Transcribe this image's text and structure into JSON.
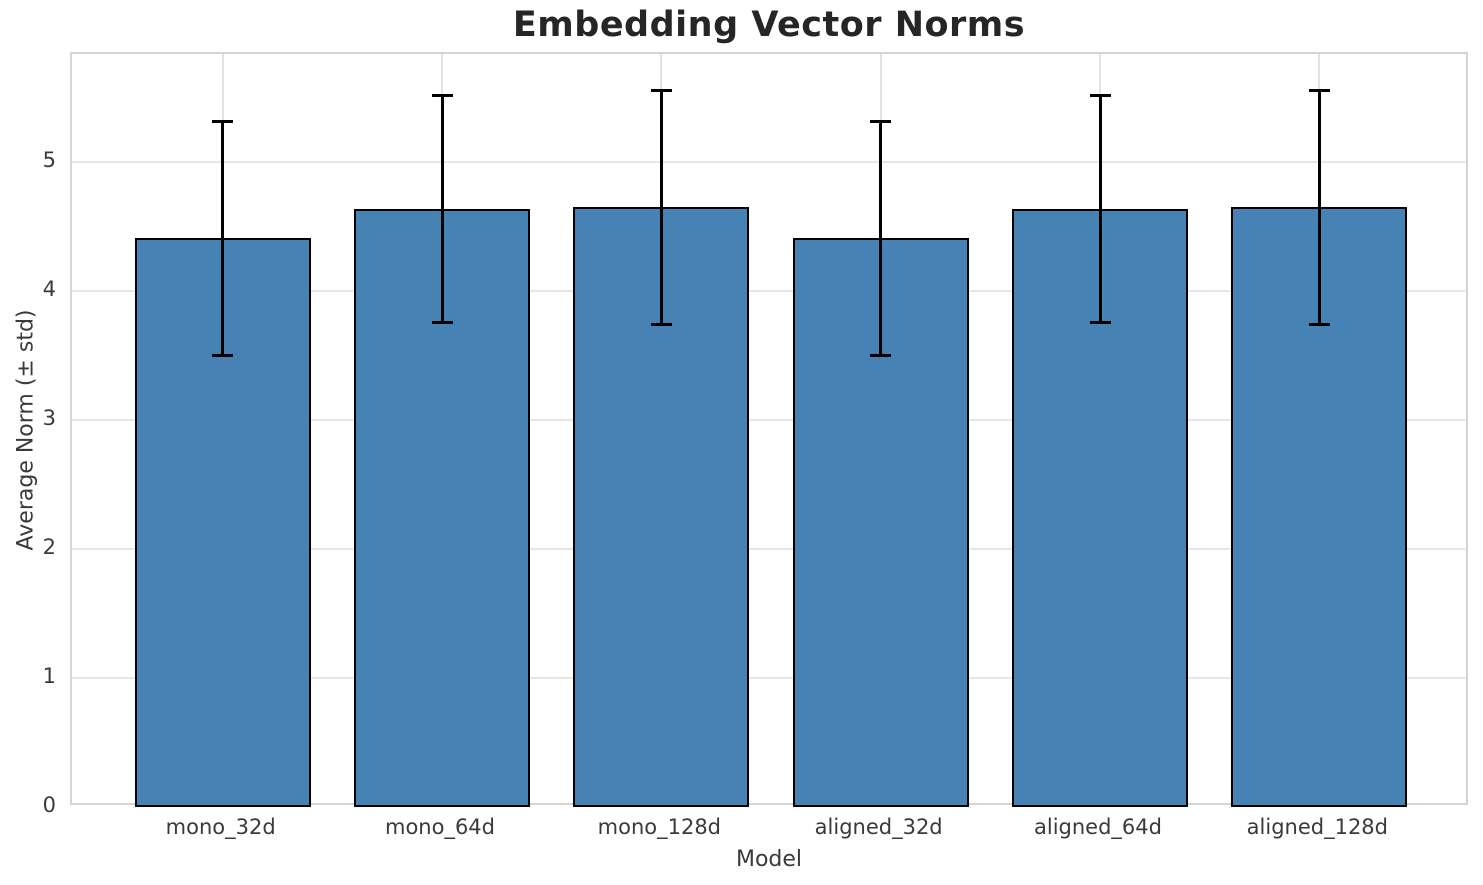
{
  "chart_data": {
    "type": "bar",
    "title": "Embedding Vector Norms",
    "xlabel": "Model",
    "ylabel": "Average Norm (± std)",
    "categories": [
      "mono_32d",
      "mono_64d",
      "mono_128d",
      "aligned_32d",
      "aligned_64d",
      "aligned_128d"
    ],
    "values": [
      4.41,
      4.64,
      4.65,
      4.41,
      4.64,
      4.65
    ],
    "errors": [
      0.91,
      0.88,
      0.91,
      0.91,
      0.88,
      0.91
    ],
    "ylim": [
      0,
      5.84
    ],
    "yticks": [
      0,
      1,
      2,
      3,
      4,
      5
    ],
    "grid": "both",
    "legend_position": "none",
    "bar_color": "#4682b4",
    "bar_edge_color": "#000000",
    "error_color": "#000000",
    "grid_color": "#e7e7e7",
    "spine_color": "#d4d4d4",
    "title_color": "#262626",
    "label_color": "#3a3a3a"
  }
}
